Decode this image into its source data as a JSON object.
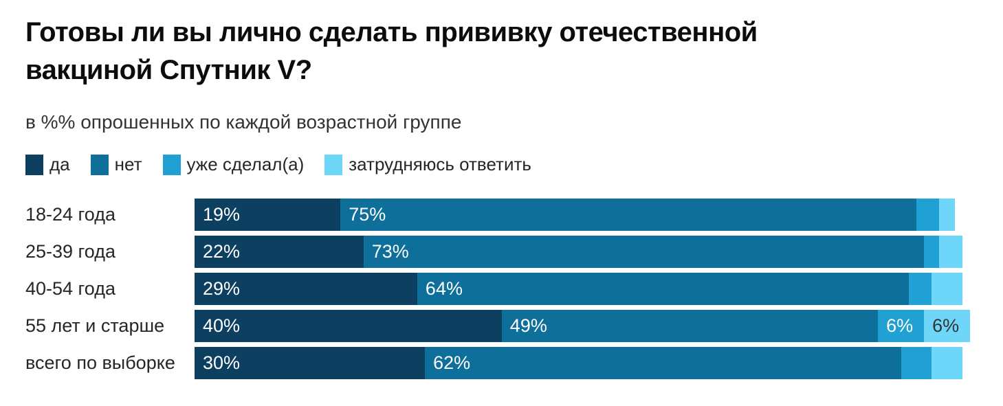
{
  "title": "Готовы ли вы лично сделать прививку отечественной\nвакциной Спутник V?",
  "subtitle": "в %% опрошенных по каждой возрастной группе",
  "chart_data": {
    "type": "bar",
    "orientation": "horizontal",
    "stacked": true,
    "unit": "%",
    "legend_position": "top",
    "grid": false,
    "categories": [
      "18-24 года",
      "25-39 года",
      "40-54 года",
      "55 лет и старше",
      "всего по выборке"
    ],
    "series": [
      {
        "key": "yes",
        "name": "да",
        "color": "#0d3f61",
        "values": [
          19,
          22,
          29,
          40,
          30
        ]
      },
      {
        "key": "no",
        "name": "нет",
        "color": "#0e6f9b",
        "values": [
          75,
          73,
          64,
          49,
          62
        ]
      },
      {
        "key": "already-vaccinated",
        "name": "уже сделал(а)",
        "color": "#20a0d3",
        "values": [
          3,
          2,
          3,
          6,
          4
        ]
      },
      {
        "key": "hard-to-answer",
        "name": "затрудняюсь ответить",
        "color": "#6ed6f9",
        "values": [
          2,
          3,
          4,
          6,
          4
        ]
      }
    ],
    "value_label_min": 6,
    "value_label_suffix": "%",
    "value_label_color": "#ffffff",
    "value_label_color_on_light": "#333333",
    "xlim": [
      0,
      101
    ]
  }
}
